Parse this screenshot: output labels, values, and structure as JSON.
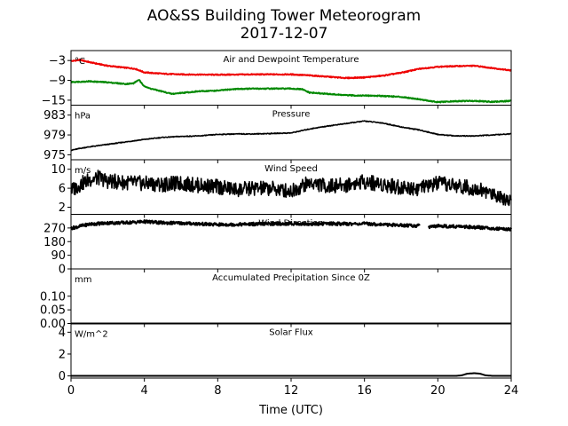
{
  "figure": {
    "title_line1": "AO&SS Building Tower Meteorogram",
    "title_line2": "2017-12-07",
    "xlabel": "Time (UTC)",
    "x_ticks": [
      "0",
      "4",
      "8",
      "12",
      "16",
      "20",
      "24"
    ]
  },
  "chart_data": [
    {
      "type": "line",
      "title": "Air and Dewpoint Temperature",
      "unit": "°C",
      "ylim": [
        -16.5,
        0
      ],
      "y_ticks": [
        -3,
        -9,
        -15
      ],
      "y_tick_labels": [
        "−3",
        "−9",
        "−15"
      ],
      "series": [
        {
          "color": "#ee0000",
          "x": [
            0,
            0.5,
            1,
            2,
            3,
            3.5,
            4,
            5,
            6,
            8,
            10,
            12,
            13,
            14,
            15,
            16,
            17,
            18,
            19,
            20,
            21,
            22,
            23,
            24
          ],
          "y": [
            -3.2,
            -2.8,
            -3.5,
            -4.6,
            -5.2,
            -5.5,
            -6.6,
            -7.0,
            -7.2,
            -7.3,
            -7.2,
            -7.2,
            -7.5,
            -7.9,
            -8.3,
            -8.1,
            -7.6,
            -6.7,
            -5.5,
            -4.9,
            -4.7,
            -4.6,
            -5.3,
            -6.0
          ]
        },
        {
          "color": "#008800",
          "x": [
            0,
            1,
            2,
            3,
            3.4,
            3.7,
            3.9,
            4.2,
            5,
            5.5,
            6,
            7,
            8,
            9,
            10,
            12,
            12.6,
            13,
            14,
            15,
            16,
            17,
            18,
            19,
            19.5,
            20,
            21,
            22,
            23,
            24
          ],
          "y": [
            -9.5,
            -9.3,
            -9.6,
            -10.1,
            -9.9,
            -8.8,
            -10.3,
            -11.3,
            -12.4,
            -13.1,
            -12.8,
            -12.3,
            -12.1,
            -11.6,
            -11.5,
            -11.5,
            -11.7,
            -12.7,
            -13.1,
            -13.5,
            -13.6,
            -13.7,
            -14.0,
            -14.7,
            -15.2,
            -15.6,
            -15.3,
            -15.2,
            -15.5,
            -15.2
          ]
        }
      ]
    },
    {
      "type": "line",
      "title": "Pressure",
      "unit": "hPa",
      "ylim": [
        974,
        985
      ],
      "y_ticks": [
        975,
        979,
        983
      ],
      "y_tick_labels": [
        "975",
        "979",
        "983"
      ],
      "series": [
        {
          "color": "#000000",
          "x": [
            0,
            0.5,
            1,
            2,
            3,
            4,
            5,
            6,
            7,
            8,
            9,
            10,
            11,
            12,
            13,
            14,
            15,
            16,
            17,
            18,
            19,
            20,
            21,
            22,
            23,
            24
          ],
          "y": [
            975.9,
            976.3,
            976.6,
            977.1,
            977.6,
            978.1,
            978.5,
            978.7,
            978.8,
            979.1,
            979.2,
            979.2,
            979.3,
            979.4,
            980.2,
            980.8,
            981.3,
            981.8,
            981.4,
            980.6,
            980.0,
            979.1,
            978.8,
            978.8,
            979.0,
            979.2
          ]
        }
      ]
    },
    {
      "type": "line",
      "title": "Wind Speed",
      "unit": "m/s",
      "ylim": [
        0.5,
        12
      ],
      "y_ticks": [
        2,
        6,
        10
      ],
      "y_tick_labels": [
        "2",
        "6",
        "10"
      ],
      "series": [
        {
          "color": "#000000",
          "x": [
            0,
            0.5,
            1,
            1.5,
            2,
            3,
            4,
            5,
            6,
            7,
            8,
            9,
            10,
            11,
            12,
            13,
            14,
            15,
            16,
            17,
            18,
            19,
            20,
            21,
            22,
            23,
            24
          ],
          "y": [
            5.5,
            6.8,
            7.8,
            8.2,
            7.5,
            7.2,
            7.0,
            6.8,
            7.0,
            6.6,
            6.3,
            5.7,
            6.0,
            5.9,
            5.4,
            7.2,
            6.4,
            6.7,
            7.4,
            6.8,
            6.2,
            6.0,
            7.0,
            6.5,
            6.0,
            4.8,
            3.5
          ]
        }
      ]
    },
    {
      "type": "line",
      "title": "Wind Direction",
      "unit": "",
      "ylim": [
        0,
        360
      ],
      "y_ticks": [
        0,
        90,
        180,
        270
      ],
      "y_tick_labels": [
        "0",
        "90",
        "180",
        "270"
      ],
      "series": [
        {
          "color": "#000000",
          "x": [
            0,
            0.5,
            1,
            2,
            3,
            4,
            5,
            6,
            7,
            8,
            9,
            10,
            11,
            12,
            13,
            14,
            15,
            16,
            17,
            18,
            19
          ],
          "y": [
            268,
            282,
            295,
            303,
            305,
            312,
            304,
            302,
            297,
            292,
            293,
            296,
            298,
            299,
            296,
            299,
            297,
            298,
            293,
            288,
            285
          ]
        },
        {
          "color": "#000000",
          "x": [
            19.5,
            20,
            21,
            22,
            23,
            24
          ],
          "y": [
            272,
            283,
            280,
            275,
            268,
            262
          ]
        }
      ]
    },
    {
      "type": "line",
      "title": "Accumulated Precipitation Since 0Z",
      "unit": "mm",
      "ylim": [
        0,
        0.2
      ],
      "y_ticks": [
        0,
        0.05,
        0.1
      ],
      "y_tick_labels": [
        "0.00",
        "0.05",
        "0.10"
      ],
      "series": [
        {
          "color": "#000000",
          "x": [
            0,
            24
          ],
          "y": [
            0,
            0
          ]
        }
      ]
    },
    {
      "type": "line",
      "title": "Solar Flux",
      "unit": "W/m^2",
      "ylim": [
        -0.2,
        4.8
      ],
      "y_ticks": [
        0,
        2,
        4
      ],
      "y_tick_labels": [
        "0",
        "2",
        "4"
      ],
      "series": [
        {
          "color": "#000000",
          "x": [
            0,
            21,
            21.3,
            21.6,
            22,
            22.3,
            22.6,
            23,
            24
          ],
          "y": [
            0,
            0,
            0.05,
            0.2,
            0.25,
            0.2,
            0.05,
            0,
            0
          ]
        }
      ]
    }
  ]
}
